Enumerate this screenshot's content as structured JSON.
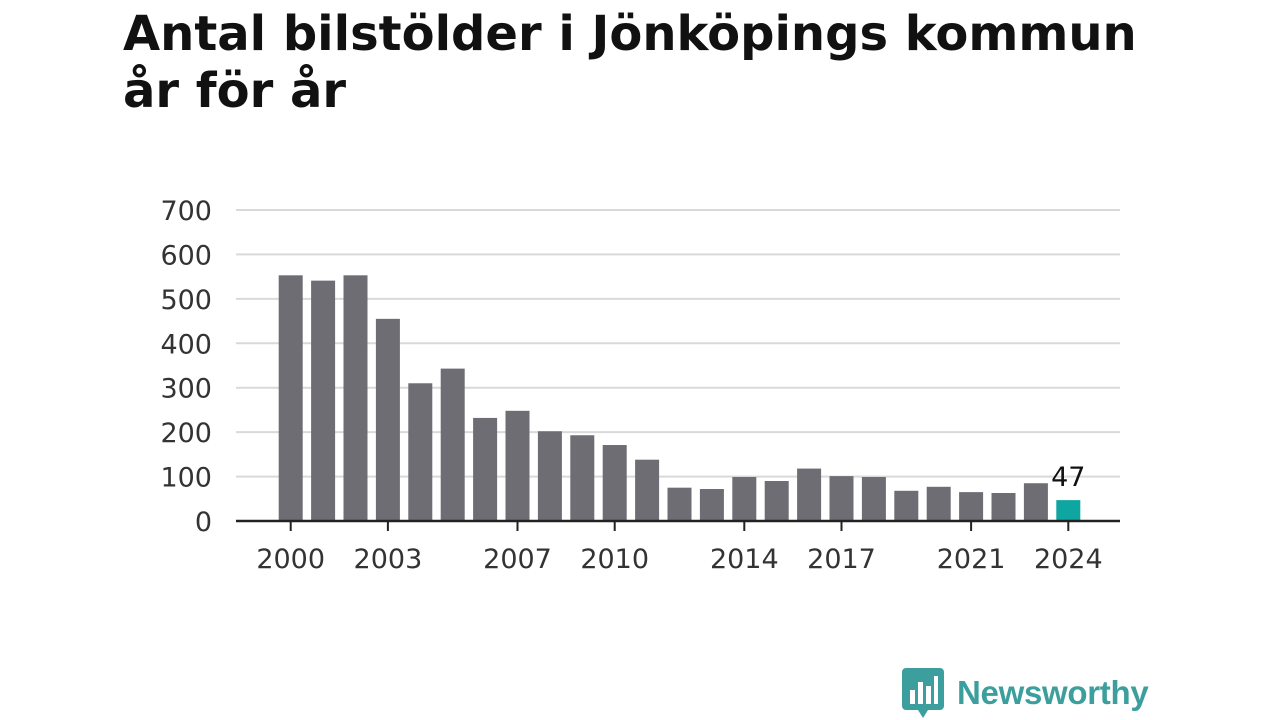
{
  "title": "Antal bilstölder i Jönköpings kommun år för år",
  "brand": {
    "name": "Newsworthy",
    "icon": "newsworthy-chart-icon",
    "color": "#3d9e9e"
  },
  "chart_data": {
    "type": "bar",
    "title": "Antal bilstölder i Jönköpings kommun år för år",
    "xlabel": "",
    "ylabel": "",
    "ylim": [
      0,
      700
    ],
    "y_ticks": [
      0,
      100,
      200,
      300,
      400,
      500,
      600,
      700
    ],
    "grid": true,
    "categories": [
      2000,
      2001,
      2002,
      2003,
      2004,
      2005,
      2006,
      2007,
      2008,
      2009,
      2010,
      2011,
      2012,
      2013,
      2014,
      2015,
      2016,
      2017,
      2018,
      2019,
      2020,
      2021,
      2022,
      2023,
      2024
    ],
    "x_tick_labels": [
      "2000",
      "2003",
      "2007",
      "2010",
      "2014",
      "2017",
      "2021",
      "2024"
    ],
    "values": [
      553,
      541,
      553,
      455,
      310,
      343,
      232,
      248,
      202,
      193,
      171,
      138,
      75,
      72,
      99,
      90,
      118,
      101,
      99,
      68,
      77,
      65,
      63,
      85,
      47
    ],
    "highlight": {
      "category": 2024,
      "label": "47"
    },
    "colors": {
      "bar": "#6e6d73",
      "highlight": "#0fa5a0",
      "grid": "#d9d9d9",
      "axis": "#222222"
    }
  }
}
